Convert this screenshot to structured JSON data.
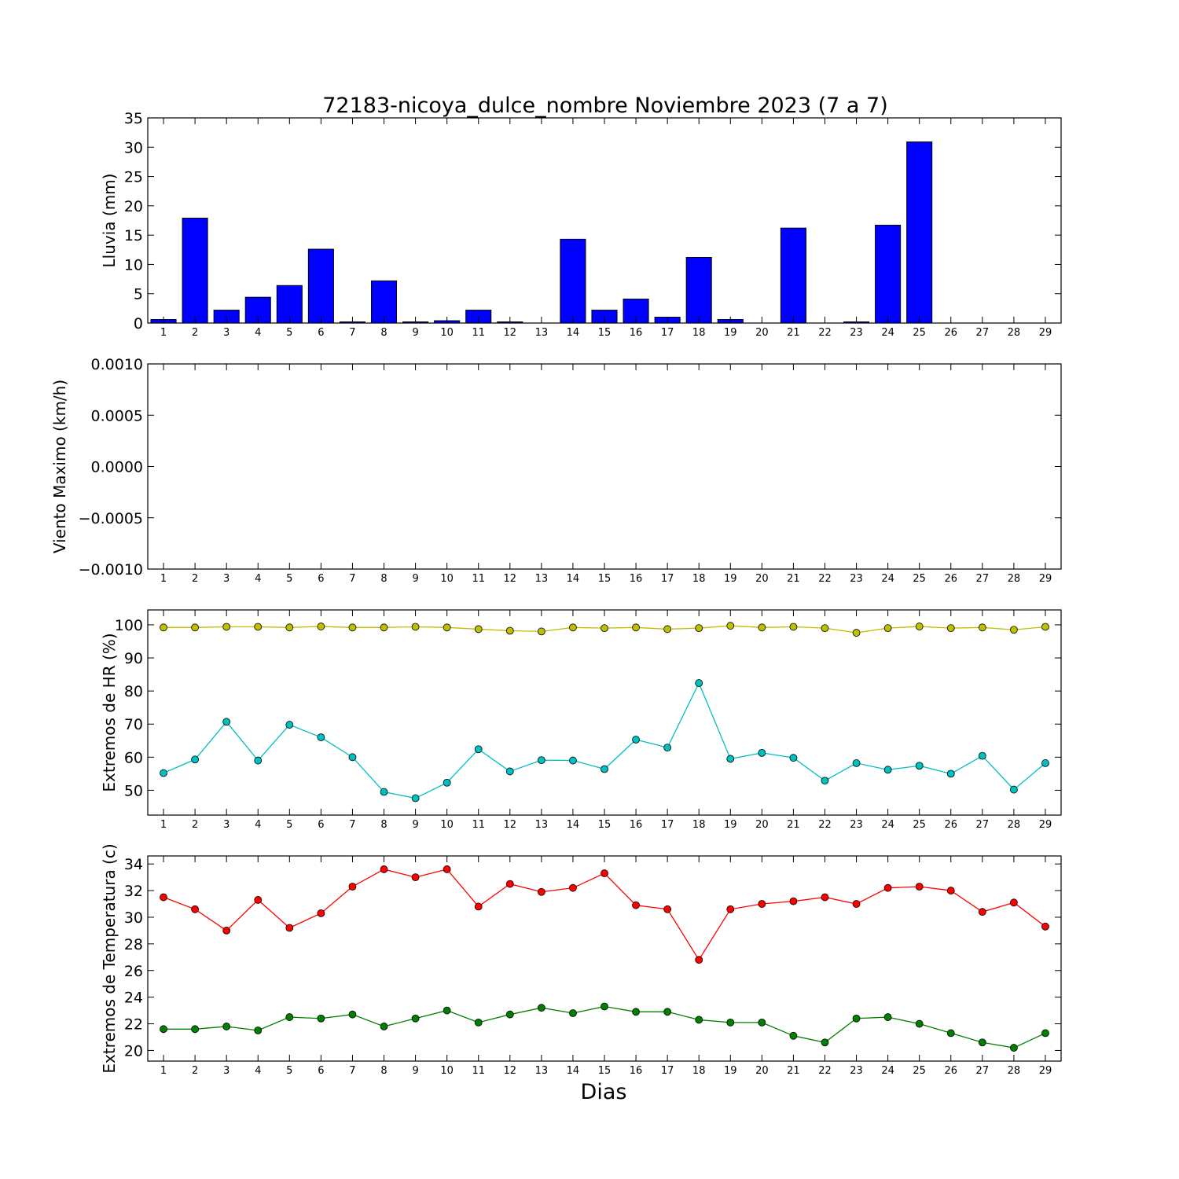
{
  "chart_data": {
    "title": "72183-nicoya_dulce_nombre Noviembre 2023  (7 a 7)",
    "xlabel": "Dias",
    "categories": [
      "1",
      "2",
      "3",
      "4",
      "5",
      "6",
      "7",
      "8",
      "9",
      "10",
      "11",
      "12",
      "13",
      "14",
      "15",
      "16",
      "17",
      "18",
      "19",
      "20",
      "21",
      "22",
      "23",
      "24",
      "25",
      "26",
      "27",
      "28",
      "29"
    ],
    "panels": [
      {
        "type": "bar",
        "ylabel": "Lluvia (mm)",
        "ylim": [
          0,
          35
        ],
        "yticks": [
          0,
          5,
          10,
          15,
          20,
          25,
          30,
          35
        ],
        "ytick_labels": [
          "0",
          "5",
          "10",
          "15",
          "20",
          "25",
          "30",
          "35"
        ],
        "series": [
          {
            "color": "#0000ff",
            "values": [
              0.6,
              17.9,
              2.2,
              4.4,
              6.4,
              12.6,
              0.2,
              7.2,
              0.2,
              0.4,
              2.2,
              0.2,
              0,
              14.3,
              2.2,
              4.1,
              1.0,
              11.2,
              0.6,
              0,
              16.2,
              0,
              0.2,
              16.7,
              30.9,
              0,
              0,
              0,
              0
            ]
          }
        ]
      },
      {
        "type": "line",
        "ylabel": "Viento Maximo (km/h)",
        "ylim": [
          -0.001,
          0.001
        ],
        "yticks": [
          -0.001,
          -0.0005,
          0,
          0.0005,
          0.001
        ],
        "ytick_labels": [
          "−0.0010",
          "−0.0005",
          "0.0000",
          "0.0005",
          "0.0010"
        ],
        "series": []
      },
      {
        "type": "line",
        "ylabel": "Extremos de HR (%)",
        "ylim": [
          42.5,
          104.5
        ],
        "yticks": [
          50,
          60,
          70,
          80,
          90,
          100
        ],
        "ytick_labels": [
          "50",
          "60",
          "70",
          "80",
          "90",
          "100"
        ],
        "series": [
          {
            "color": "#bfbf00",
            "values": [
              99.2,
              99.2,
              99.4,
              99.4,
              99.2,
              99.5,
              99.2,
              99.2,
              99.4,
              99.2,
              98.7,
              98.2,
              98.0,
              99.2,
              99.0,
              99.2,
              98.7,
              99.0,
              99.7,
              99.2,
              99.4,
              99.0,
              97.6,
              99.0,
              99.5,
              99.0,
              99.2,
              98.5,
              99.4
            ]
          },
          {
            "color": "#00bfbf",
            "values": [
              55.2,
              59.3,
              70.7,
              59.0,
              69.8,
              66.0,
              60.0,
              49.5,
              47.6,
              52.3,
              62.4,
              55.7,
              59.1,
              59.0,
              56.4,
              65.3,
              62.9,
              82.4,
              59.5,
              61.3,
              59.8,
              52.9,
              58.2,
              56.2,
              57.4,
              55.0,
              60.4,
              50.2,
              58.2
            ]
          }
        ]
      },
      {
        "type": "line",
        "ylabel": "Extremos de Temperatura (c)",
        "ylim": [
          19.2,
          34.6
        ],
        "yticks": [
          20,
          22,
          24,
          26,
          28,
          30,
          32,
          34
        ],
        "ytick_labels": [
          "20",
          "22",
          "24",
          "26",
          "28",
          "30",
          "32",
          "34"
        ],
        "series": [
          {
            "color": "#ff0000",
            "values": [
              31.5,
              30.6,
              29.0,
              31.3,
              29.2,
              30.3,
              32.3,
              33.6,
              33.0,
              33.6,
              30.8,
              32.5,
              31.9,
              32.2,
              33.3,
              30.9,
              30.6,
              26.8,
              30.6,
              31.0,
              31.2,
              31.5,
              31.0,
              32.2,
              32.3,
              32.0,
              30.4,
              31.1,
              29.3
            ]
          },
          {
            "color": "#008000",
            "values": [
              21.6,
              21.6,
              21.8,
              21.5,
              22.5,
              22.4,
              22.7,
              21.8,
              22.4,
              23.0,
              22.1,
              22.7,
              23.2,
              22.8,
              23.3,
              22.9,
              22.9,
              22.3,
              22.1,
              22.1,
              21.1,
              20.6,
              22.4,
              22.5,
              22.0,
              21.3,
              20.6,
              20.2,
              21.3
            ]
          }
        ]
      }
    ]
  }
}
